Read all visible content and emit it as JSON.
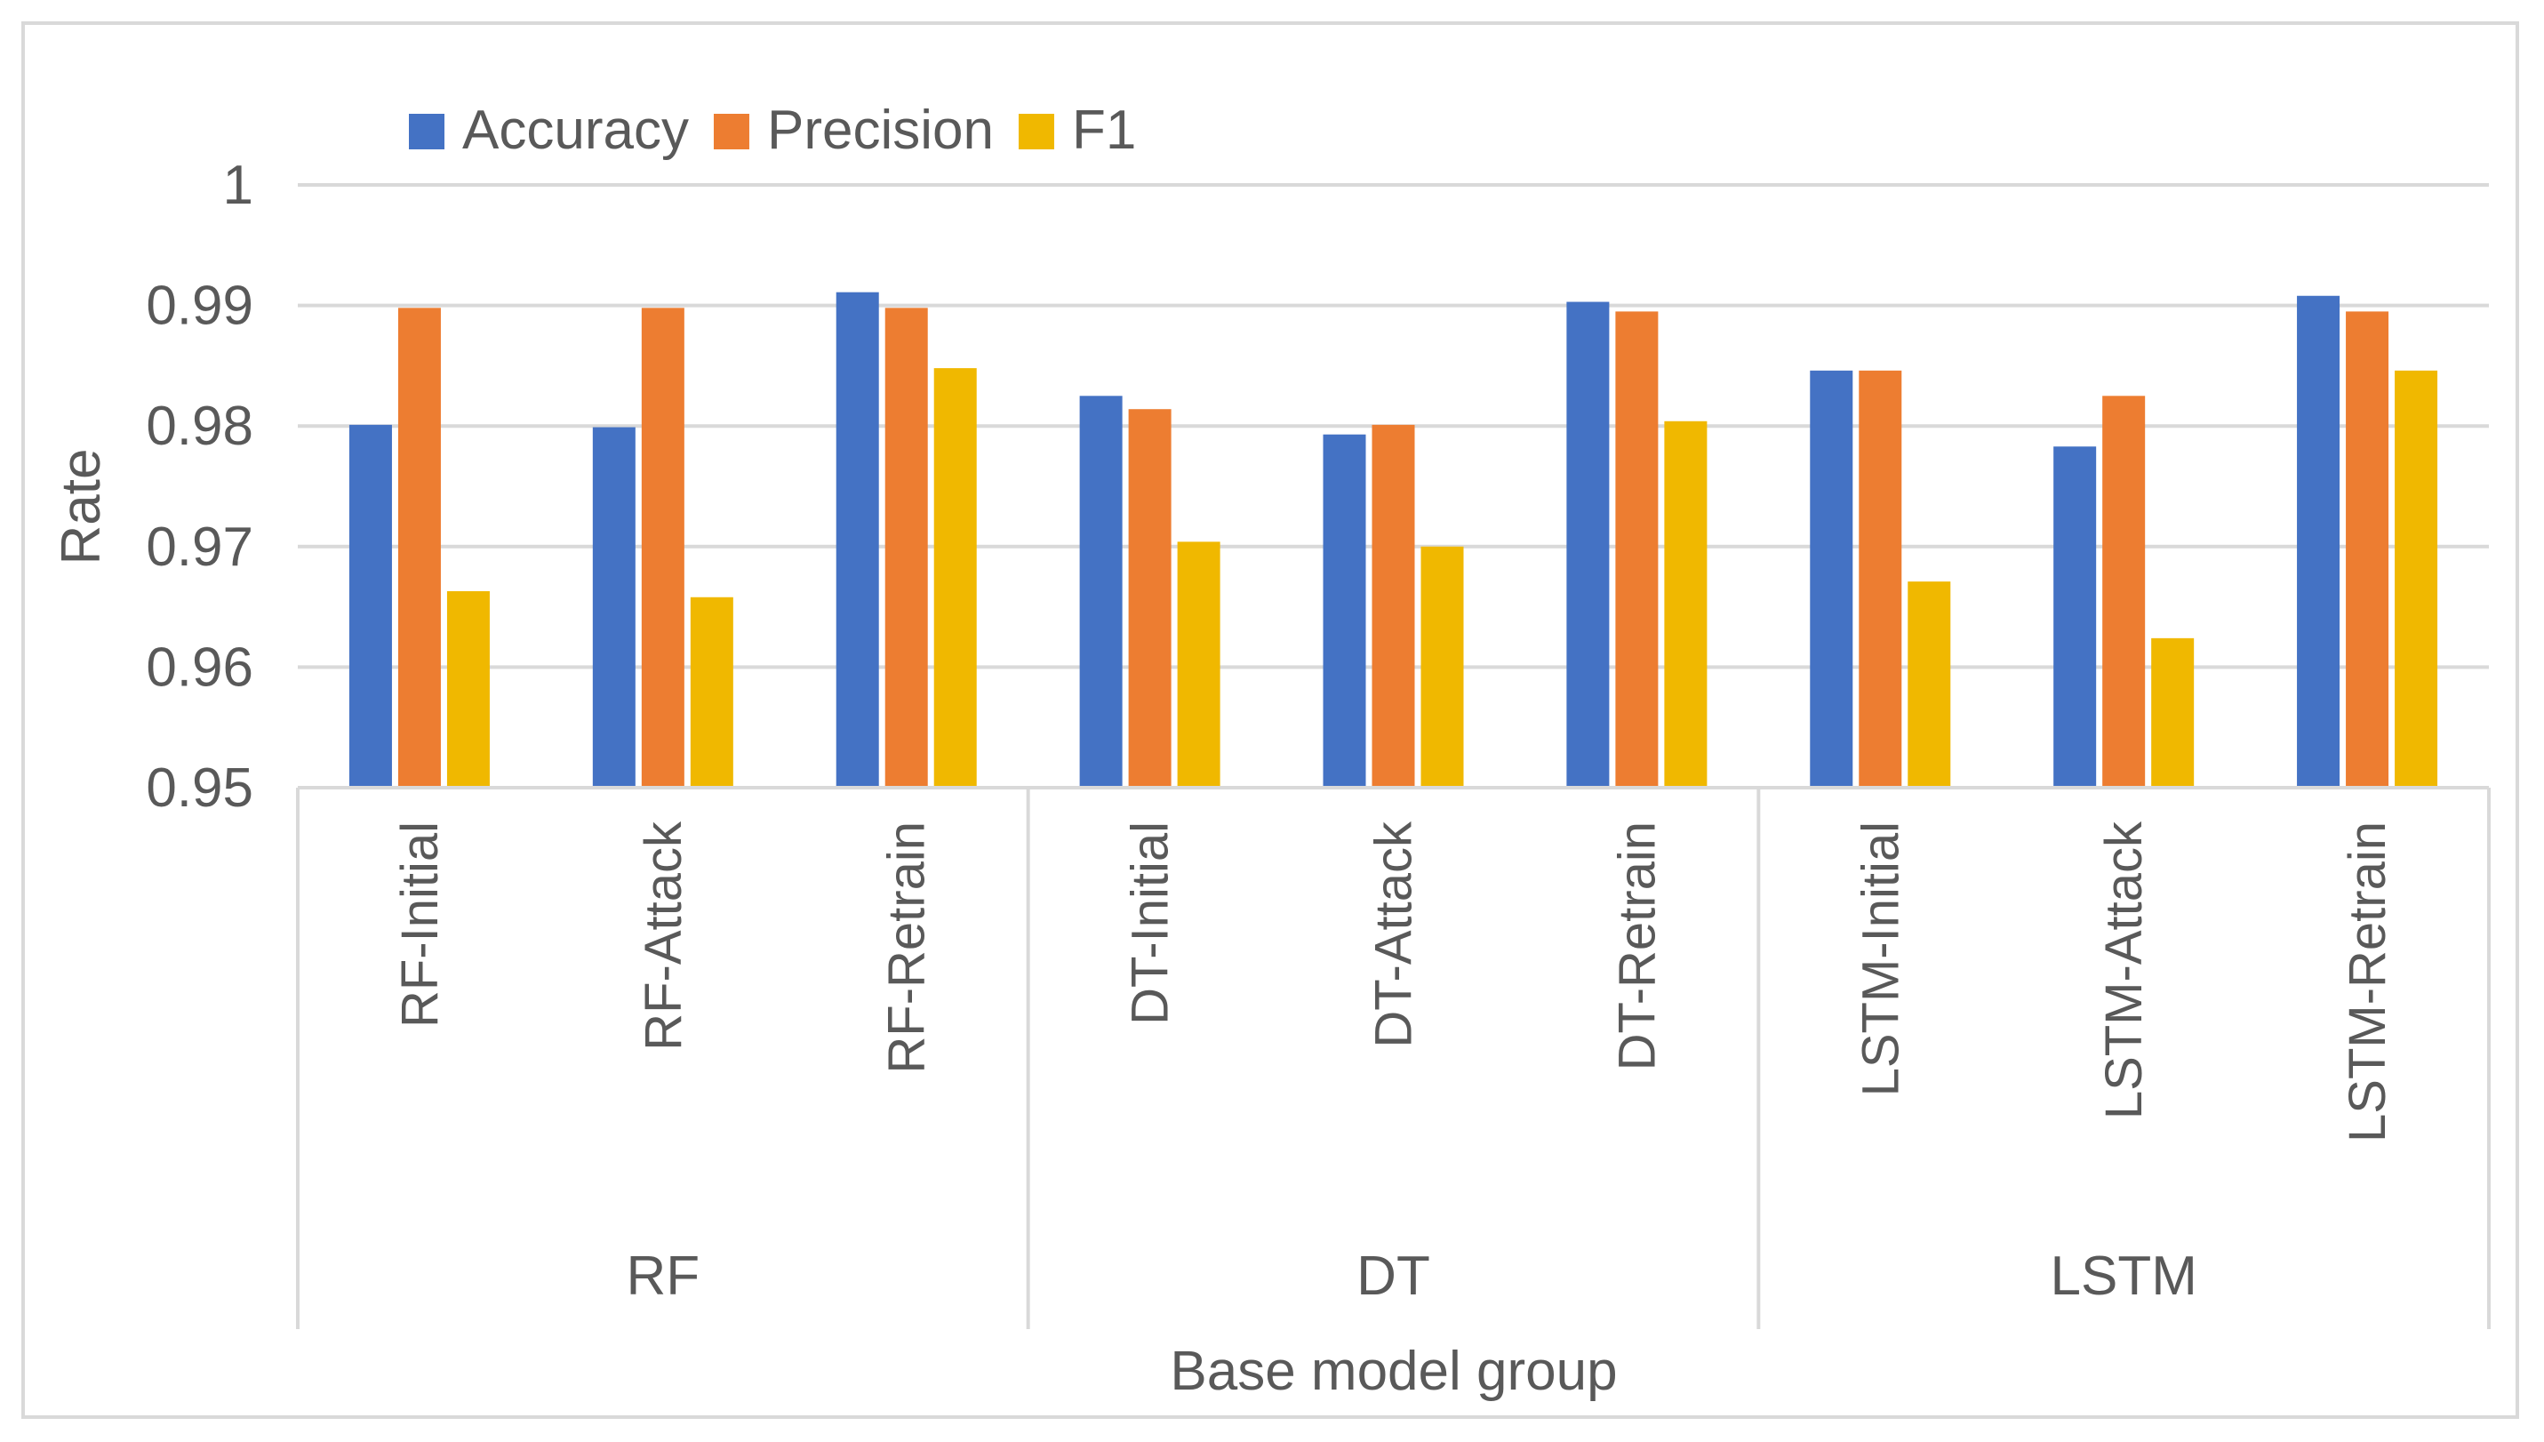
{
  "chart_data": {
    "type": "bar",
    "title": "",
    "xlabel": "Base model group",
    "ylabel": "Rate",
    "ylim": [
      0.95,
      1
    ],
    "yticks": [
      "0.95",
      "0.96",
      "0.97",
      "0.98",
      "0.99",
      "1"
    ],
    "grid": true,
    "legend_position": "top-left",
    "groups": [
      {
        "name": "RF",
        "categories": [
          "RF-Initial",
          "RF-Attack",
          "RF-Retrain"
        ]
      },
      {
        "name": "DT",
        "categories": [
          "DT-Initial",
          "DT-Attack",
          "DT-Retrain"
        ]
      },
      {
        "name": "LSTM",
        "categories": [
          "LSTM-Initial",
          "LSTM-Attack",
          "LSTM-Retrain"
        ]
      }
    ],
    "categories": [
      "RF-Initial",
      "RF-Attack",
      "RF-Retrain",
      "DT-Initial",
      "DT-Attack",
      "DT-Retrain",
      "LSTM-Initial",
      "LSTM-Attack",
      "LSTM-Retrain"
    ],
    "series": [
      {
        "name": "Accuracy",
        "color": "#4472c4",
        "values": [
          0.9801,
          0.9799,
          0.9911,
          0.9825,
          0.9793,
          0.9903,
          0.9846,
          0.9783,
          0.9908
        ]
      },
      {
        "name": "Precision",
        "color": "#ed7d31",
        "values": [
          0.9898,
          0.9898,
          0.9898,
          0.9814,
          0.9801,
          0.9895,
          0.9846,
          0.9825,
          0.9895
        ]
      },
      {
        "name": "F1",
        "color": "#f0b800",
        "values": [
          0.9663,
          0.9658,
          0.9848,
          0.9704,
          0.97,
          0.9804,
          0.9671,
          0.9624,
          0.9846
        ]
      }
    ]
  }
}
